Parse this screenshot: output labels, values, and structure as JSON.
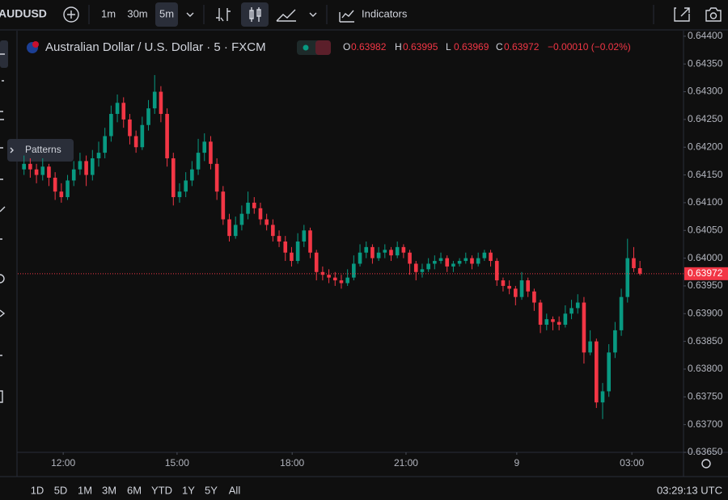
{
  "toolbar": {
    "symbol": "AUDUSD",
    "intervals": [
      "1m",
      "30m",
      "5m"
    ],
    "indicators": "Indicators"
  },
  "tooltip": "Patterns",
  "chart_data": {
    "type": "candlestick",
    "title": "Australian Dollar / U.S. Dollar · 5 · FXCM",
    "legend_letters": [
      "O",
      "H",
      "L",
      "C"
    ],
    "change": "−0.00010 (−0.02%)",
    "up_color": "#089981",
    "down_color": "#f23645",
    "ohlc": [
      [
        0.6416,
        0.64185,
        0.6415,
        0.6417
      ],
      [
        0.6417,
        0.6418,
        0.64145,
        0.6416
      ],
      [
        0.6416,
        0.6417,
        0.64135,
        0.6415
      ],
      [
        0.6415,
        0.6418,
        0.6414,
        0.64165
      ],
      [
        0.64165,
        0.6417,
        0.6413,
        0.64145
      ],
      [
        0.64145,
        0.64155,
        0.64105,
        0.6412
      ],
      [
        0.6412,
        0.64135,
        0.641,
        0.6411
      ],
      [
        0.6411,
        0.6415,
        0.64105,
        0.6414
      ],
      [
        0.6414,
        0.64175,
        0.6413,
        0.6416
      ],
      [
        0.6416,
        0.6419,
        0.6415,
        0.64175
      ],
      [
        0.64175,
        0.64185,
        0.6413,
        0.6415
      ],
      [
        0.6415,
        0.64195,
        0.6414,
        0.6418
      ],
      [
        0.6418,
        0.6421,
        0.64165,
        0.6419
      ],
      [
        0.6419,
        0.64235,
        0.6418,
        0.6422
      ],
      [
        0.6422,
        0.64275,
        0.6421,
        0.6426
      ],
      [
        0.6426,
        0.64295,
        0.64245,
        0.6428
      ],
      [
        0.6428,
        0.6429,
        0.64235,
        0.6425
      ],
      [
        0.6425,
        0.6426,
        0.64205,
        0.6422
      ],
      [
        0.6422,
        0.6423,
        0.6419,
        0.642
      ],
      [
        0.642,
        0.64255,
        0.64195,
        0.6424
      ],
      [
        0.6424,
        0.64285,
        0.6423,
        0.6427
      ],
      [
        0.6427,
        0.6433,
        0.6426,
        0.643
      ],
      [
        0.643,
        0.6431,
        0.64245,
        0.6426
      ],
      [
        0.6426,
        0.6427,
        0.64165,
        0.6418
      ],
      [
        0.6418,
        0.6419,
        0.64095,
        0.6411
      ],
      [
        0.6411,
        0.64135,
        0.641,
        0.6412
      ],
      [
        0.6412,
        0.64155,
        0.6411,
        0.6414
      ],
      [
        0.6414,
        0.64175,
        0.6413,
        0.6416
      ],
      [
        0.6416,
        0.64215,
        0.6415,
        0.6419
      ],
      [
        0.6419,
        0.64225,
        0.64175,
        0.6421
      ],
      [
        0.6421,
        0.6422,
        0.6416,
        0.6417
      ],
      [
        0.6417,
        0.6418,
        0.64105,
        0.6412
      ],
      [
        0.6412,
        0.6413,
        0.6406,
        0.6407
      ],
      [
        0.6407,
        0.6408,
        0.6403,
        0.6404
      ],
      [
        0.6404,
        0.64075,
        0.64035,
        0.6406
      ],
      [
        0.6406,
        0.64095,
        0.6405,
        0.6408
      ],
      [
        0.6408,
        0.6412,
        0.6407,
        0.641
      ],
      [
        0.641,
        0.6411,
        0.6408,
        0.6409
      ],
      [
        0.6409,
        0.641,
        0.6406,
        0.6407
      ],
      [
        0.6407,
        0.6408,
        0.6405,
        0.6406
      ],
      [
        0.6406,
        0.6407,
        0.6403,
        0.6404
      ],
      [
        0.6404,
        0.6405,
        0.6402,
        0.6403
      ],
      [
        0.6403,
        0.6404,
        0.63995,
        0.6401
      ],
      [
        0.6401,
        0.6402,
        0.63985,
        0.63995
      ],
      [
        0.63995,
        0.64045,
        0.6399,
        0.6403
      ],
      [
        0.6403,
        0.6406,
        0.6402,
        0.6405
      ],
      [
        0.6405,
        0.64055,
        0.64,
        0.6401
      ],
      [
        0.6401,
        0.64015,
        0.6396,
        0.63975
      ],
      [
        0.63975,
        0.63985,
        0.6396,
        0.6397
      ],
      [
        0.6397,
        0.6398,
        0.63955,
        0.63965
      ],
      [
        0.63965,
        0.63975,
        0.6395,
        0.6396
      ],
      [
        0.6396,
        0.6397,
        0.63945,
        0.63955
      ],
      [
        0.63955,
        0.6398,
        0.6395,
        0.63965
      ],
      [
        0.63965,
        0.64005,
        0.6396,
        0.6399
      ],
      [
        0.6399,
        0.64025,
        0.63985,
        0.6401
      ],
      [
        0.6401,
        0.6403,
        0.64,
        0.6402
      ],
      [
        0.6402,
        0.64025,
        0.6399,
        0.64
      ],
      [
        0.64,
        0.6402,
        0.63995,
        0.6401
      ],
      [
        0.6401,
        0.64025,
        0.64,
        0.64015
      ],
      [
        0.64015,
        0.6402,
        0.63995,
        0.64005
      ],
      [
        0.64005,
        0.6403,
        0.64,
        0.6402
      ],
      [
        0.6402,
        0.64025,
        0.64,
        0.6401
      ],
      [
        0.6401,
        0.64015,
        0.6397,
        0.6399
      ],
      [
        0.6399,
        0.63995,
        0.6396,
        0.63975
      ],
      [
        0.63975,
        0.6399,
        0.63965,
        0.6398
      ],
      [
        0.6398,
        0.64,
        0.63975,
        0.6399
      ],
      [
        0.6399,
        0.64005,
        0.6398,
        0.63995
      ],
      [
        0.63995,
        0.6401,
        0.6399,
        0.64
      ],
      [
        0.64,
        0.64005,
        0.63975,
        0.63985
      ],
      [
        0.63985,
        0.63995,
        0.63975,
        0.6399
      ],
      [
        0.6399,
        0.64,
        0.63985,
        0.63995
      ],
      [
        0.63995,
        0.6401,
        0.6399,
        0.64
      ],
      [
        0.64,
        0.64005,
        0.6398,
        0.6399
      ],
      [
        0.6399,
        0.6401,
        0.63985,
        0.64
      ],
      [
        0.64,
        0.64015,
        0.63995,
        0.6401
      ],
      [
        0.6401,
        0.64015,
        0.63985,
        0.63995
      ],
      [
        0.63995,
        0.64,
        0.6395,
        0.6396
      ],
      [
        0.6396,
        0.63965,
        0.6394,
        0.6395
      ],
      [
        0.6395,
        0.6396,
        0.63935,
        0.63945
      ],
      [
        0.63945,
        0.6395,
        0.63915,
        0.6393
      ],
      [
        0.6393,
        0.63975,
        0.63925,
        0.6396
      ],
      [
        0.6396,
        0.63965,
        0.6393,
        0.6394
      ],
      [
        0.6394,
        0.63945,
        0.63905,
        0.6392
      ],
      [
        0.6392,
        0.63925,
        0.63865,
        0.6388
      ],
      [
        0.6388,
        0.639,
        0.6387,
        0.6389
      ],
      [
        0.6389,
        0.63895,
        0.6387,
        0.63885
      ],
      [
        0.63885,
        0.63895,
        0.6387,
        0.6388
      ],
      [
        0.6388,
        0.63915,
        0.63875,
        0.639
      ],
      [
        0.639,
        0.63925,
        0.6389,
        0.6391
      ],
      [
        0.6391,
        0.63935,
        0.639,
        0.6392
      ],
      [
        0.6392,
        0.6393,
        0.6381,
        0.6383
      ],
      [
        0.6383,
        0.6387,
        0.63825,
        0.6385
      ],
      [
        0.6385,
        0.63855,
        0.6373,
        0.6374
      ],
      [
        0.6374,
        0.63775,
        0.6371,
        0.6376
      ],
      [
        0.6376,
        0.63845,
        0.6375,
        0.6383
      ],
      [
        0.6383,
        0.63885,
        0.6382,
        0.6387
      ],
      [
        0.6387,
        0.63945,
        0.6386,
        0.6393
      ],
      [
        0.6393,
        0.64035,
        0.6392,
        0.64
      ],
      [
        0.64,
        0.6402,
        0.63975,
        0.63982
      ],
      [
        0.63982,
        0.63995,
        0.63969,
        0.63972
      ]
    ],
    "xlim": [
      -1,
      106
    ],
    "xticks": [
      {
        "value": 6.3,
        "label": "12:00"
      },
      {
        "value": 24.6,
        "label": "15:00"
      },
      {
        "value": 43.1,
        "label": "18:00"
      },
      {
        "value": 61.4,
        "label": "21:00"
      },
      {
        "value": 79.2,
        "label": "9"
      },
      {
        "value": 97.7,
        "label": "03:00"
      }
    ],
    "ylim": [
      0.6365,
      0.6441
    ],
    "yticks": [
      {
        "value": 0.6365,
        "label": "0.63650"
      },
      {
        "value": 0.637,
        "label": "0.63700"
      },
      {
        "value": 0.6375,
        "label": "0.63750"
      },
      {
        "value": 0.638,
        "label": "0.63800"
      },
      {
        "value": 0.6385,
        "label": "0.63850"
      },
      {
        "value": 0.639,
        "label": "0.63900"
      },
      {
        "value": 0.6395,
        "label": "0.63950"
      },
      {
        "value": 0.64,
        "label": "0.64000"
      },
      {
        "value": 0.6405,
        "label": "0.64050"
      },
      {
        "value": 0.641,
        "label": "0.64100"
      },
      {
        "value": 0.6415,
        "label": "0.64150"
      },
      {
        "value": 0.642,
        "label": "0.64200"
      },
      {
        "value": 0.6425,
        "label": "0.64250"
      },
      {
        "value": 0.643,
        "label": "0.64300"
      },
      {
        "value": 0.6435,
        "label": "0.64350"
      },
      {
        "value": 0.644,
        "label": "0.64400"
      }
    ]
  },
  "ranges": [
    "1D",
    "5D",
    "1M",
    "3M",
    "6M",
    "YTD",
    "1Y",
    "5Y",
    "All"
  ],
  "clock": "03:29:13 UTC"
}
